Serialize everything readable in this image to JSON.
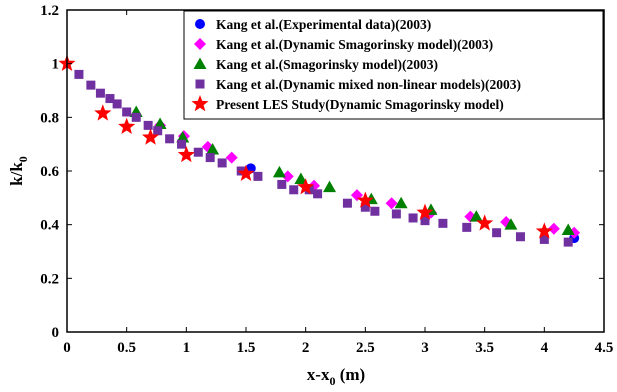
{
  "chart_data": {
    "type": "scatter",
    "xlabel": "x-x",
    "xlabel_sub": "0",
    "xlabel_unit": " (m)",
    "ylabel": "k/k",
    "ylabel_sub": "0",
    "xlim": [
      0,
      4.5
    ],
    "ylim": [
      0,
      1.2
    ],
    "xticks": [
      0,
      0.5,
      1,
      1.5,
      2,
      2.5,
      3,
      3.5,
      4,
      4.5
    ],
    "xtick_labels": [
      "0",
      "0.5",
      "1",
      "1.5",
      "2",
      "2.5",
      "3",
      "3.5",
      "4",
      "4.5"
    ],
    "yticks": [
      0,
      0.2,
      0.4,
      0.6,
      0.8,
      1.0,
      1.2
    ],
    "ytick_labels": [
      "0",
      "0.2",
      "0.4",
      "0.6",
      "0.8",
      "1",
      "1.2"
    ],
    "grid": false,
    "legend_position": "top-right",
    "series": [
      {
        "name": "Kang et al.(Experimental data)(2003)",
        "marker": "circle",
        "color": "#0000ff",
        "points": [
          [
            1.54,
            0.61
          ],
          [
            4.25,
            0.35
          ]
        ]
      },
      {
        "name": "Kang et al.(Dynamic Smagorinsky model)(2003)",
        "marker": "diamond",
        "color": "#ff00ff",
        "points": [
          [
            0.78,
            0.77
          ],
          [
            0.98,
            0.73
          ],
          [
            1.18,
            0.69
          ],
          [
            1.38,
            0.65
          ],
          [
            1.85,
            0.58
          ],
          [
            2.07,
            0.545
          ],
          [
            2.43,
            0.51
          ],
          [
            2.72,
            0.48
          ],
          [
            3.05,
            0.445
          ],
          [
            3.38,
            0.43
          ],
          [
            3.68,
            0.41
          ],
          [
            4.08,
            0.385
          ],
          [
            4.25,
            0.37
          ]
        ]
      },
      {
        "name": "Kang et al.(Smagorinsky model)(2003)",
        "marker": "triangle",
        "color": "#008000",
        "points": [
          [
            0.58,
            0.82
          ],
          [
            0.78,
            0.775
          ],
          [
            0.97,
            0.725
          ],
          [
            1.22,
            0.68
          ],
          [
            1.78,
            0.595
          ],
          [
            1.96,
            0.57
          ],
          [
            2.2,
            0.54
          ],
          [
            2.55,
            0.495
          ],
          [
            2.8,
            0.48
          ],
          [
            3.05,
            0.455
          ],
          [
            3.43,
            0.43
          ],
          [
            3.72,
            0.4
          ],
          [
            4.2,
            0.38
          ]
        ]
      },
      {
        "name": "Kang et al.(Dynamic mixed non-linear models)(2003)",
        "marker": "square",
        "color": "#7030a0",
        "points": [
          [
            0.1,
            0.96
          ],
          [
            0.2,
            0.92
          ],
          [
            0.28,
            0.89
          ],
          [
            0.36,
            0.87
          ],
          [
            0.42,
            0.85
          ],
          [
            0.5,
            0.82
          ],
          [
            0.58,
            0.8
          ],
          [
            0.68,
            0.77
          ],
          [
            0.76,
            0.75
          ],
          [
            0.86,
            0.72
          ],
          [
            0.96,
            0.7
          ],
          [
            1.1,
            0.67
          ],
          [
            1.2,
            0.65
          ],
          [
            1.3,
            0.63
          ],
          [
            1.46,
            0.6
          ],
          [
            1.6,
            0.58
          ],
          [
            1.8,
            0.55
          ],
          [
            1.9,
            0.53
          ],
          [
            2.03,
            0.53
          ],
          [
            2.1,
            0.515
          ],
          [
            2.35,
            0.48
          ],
          [
            2.5,
            0.465
          ],
          [
            2.58,
            0.45
          ],
          [
            2.76,
            0.44
          ],
          [
            2.9,
            0.425
          ],
          [
            3.0,
            0.415
          ],
          [
            3.15,
            0.405
          ],
          [
            3.35,
            0.39
          ],
          [
            3.6,
            0.37
          ],
          [
            3.8,
            0.355
          ],
          [
            4.0,
            0.345
          ],
          [
            4.2,
            0.335
          ]
        ]
      },
      {
        "name": "Present LES Study(Dynamic Smagorinsky model)",
        "marker": "star",
        "color": "#ff0000",
        "points": [
          [
            0.0,
            1.0
          ],
          [
            0.3,
            0.815
          ],
          [
            0.5,
            0.765
          ],
          [
            0.7,
            0.725
          ],
          [
            1.0,
            0.66
          ],
          [
            1.5,
            0.59
          ],
          [
            2.0,
            0.54
          ],
          [
            2.5,
            0.49
          ],
          [
            3.0,
            0.445
          ],
          [
            3.5,
            0.405
          ],
          [
            4.0,
            0.375
          ]
        ]
      }
    ]
  }
}
